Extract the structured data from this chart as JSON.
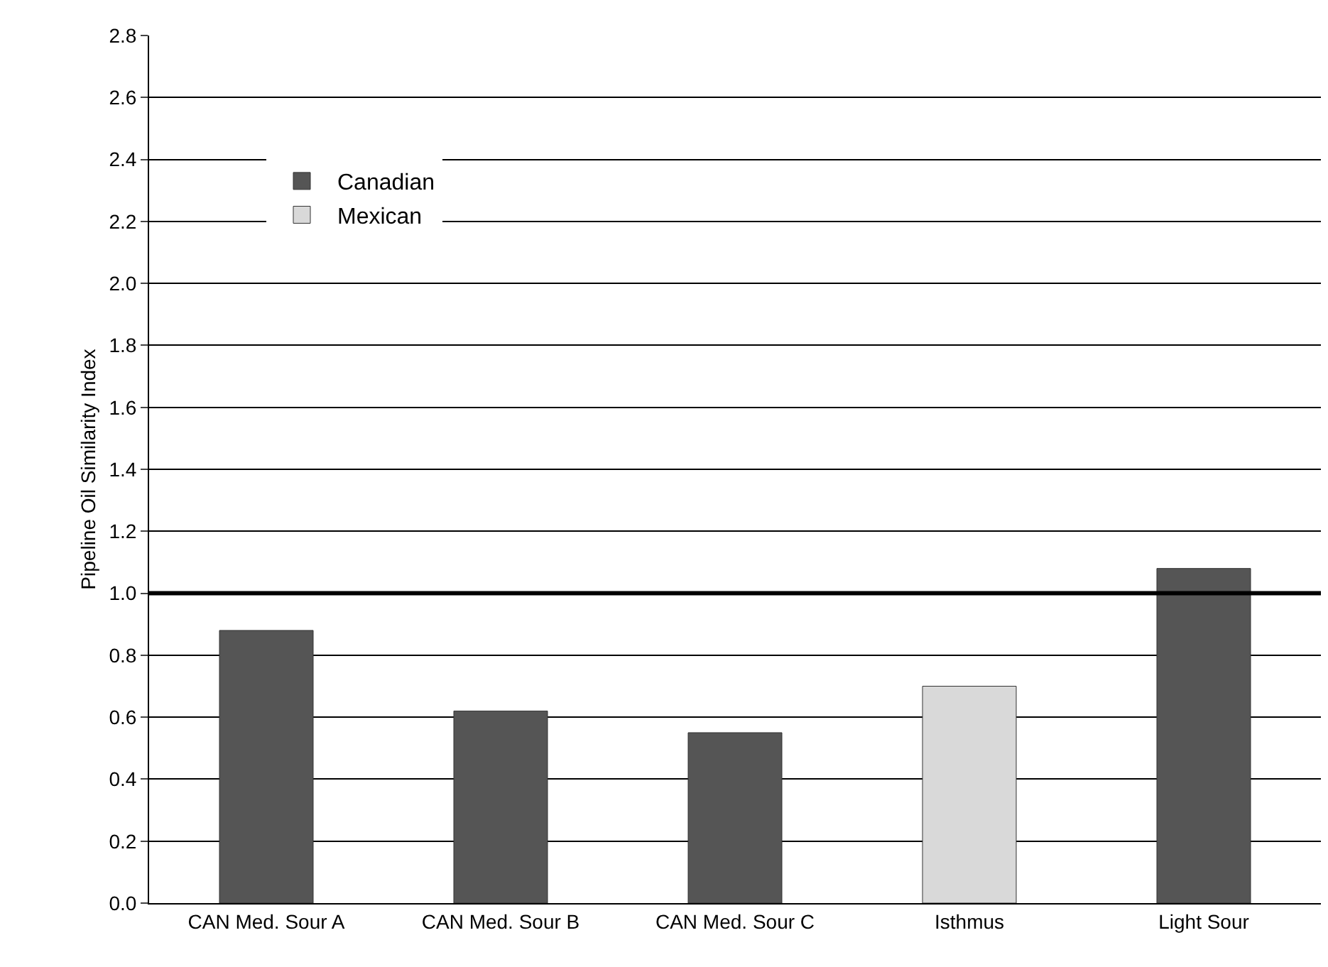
{
  "chart_data": {
    "type": "bar",
    "ylabel": "Pipeline Oil Similarity Index",
    "categories": [
      "CAN Med. Sour A",
      "CAN Med. Sour B",
      "CAN Med. Sour C",
      "Isthmus",
      "Light Sour"
    ],
    "series": [
      {
        "name": "Canadian",
        "color": "#555555",
        "values": [
          0.88,
          0.62,
          0.55,
          null,
          1.08
        ]
      },
      {
        "name": "Mexican",
        "color": "#d9d9d9",
        "values": [
          null,
          null,
          null,
          0.7,
          null
        ]
      }
    ],
    "ylim": [
      0,
      2.8
    ],
    "yticks": [
      {
        "value": 0,
        "label": "0.0"
      },
      0.2,
      0.4,
      0.6,
      0.8,
      {
        "value": 1,
        "label": "1.0"
      },
      1.2,
      1.4,
      1.6,
      1.8,
      {
        "value": 2,
        "label": "2.0"
      },
      2.2,
      2.4,
      2.6,
      2.8
    ],
    "grid": "y",
    "legend": "top left",
    "ref_lines": [
      {
        "axis": "y",
        "value": 1,
        "color": "#000000"
      }
    ]
  }
}
